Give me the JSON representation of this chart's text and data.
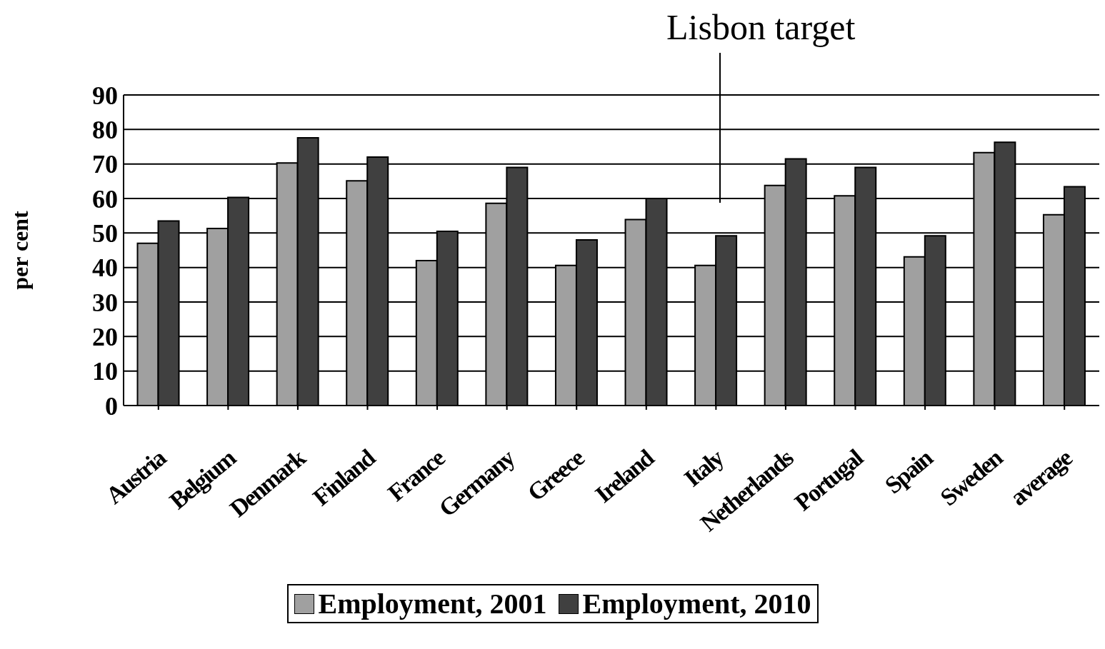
{
  "chart_data": {
    "type": "bar",
    "ylabel": "per cent",
    "categories": [
      "Austria",
      "Belgium",
      "Denmark",
      "Finland",
      "France",
      "Germany",
      "Greece",
      "Ireland",
      "Italy",
      "Netherlands",
      "Portugal",
      "Spain",
      "Sweden",
      "average"
    ],
    "series": [
      {
        "name": "Employment, 2001",
        "color": "#a0a0a0",
        "values": [
          47.0,
          51.3,
          70.3,
          65.1,
          42.0,
          58.6,
          40.6,
          53.9,
          40.6,
          63.8,
          60.8,
          43.1,
          73.3,
          55.3
        ]
      },
      {
        "name": "Employment, 2010",
        "color": "#404040",
        "values": [
          53.5,
          60.3,
          77.6,
          72.0,
          50.5,
          69.0,
          48.0,
          60.0,
          49.2,
          71.5,
          69.0,
          49.2,
          76.3,
          63.4
        ]
      }
    ],
    "ylim": [
      0,
      90
    ],
    "yticks": [
      0,
      10,
      20,
      30,
      40,
      50,
      60,
      70,
      80,
      90
    ],
    "grid": "y",
    "legend": "bottom",
    "annotations": [
      "Lisbon target"
    ]
  }
}
